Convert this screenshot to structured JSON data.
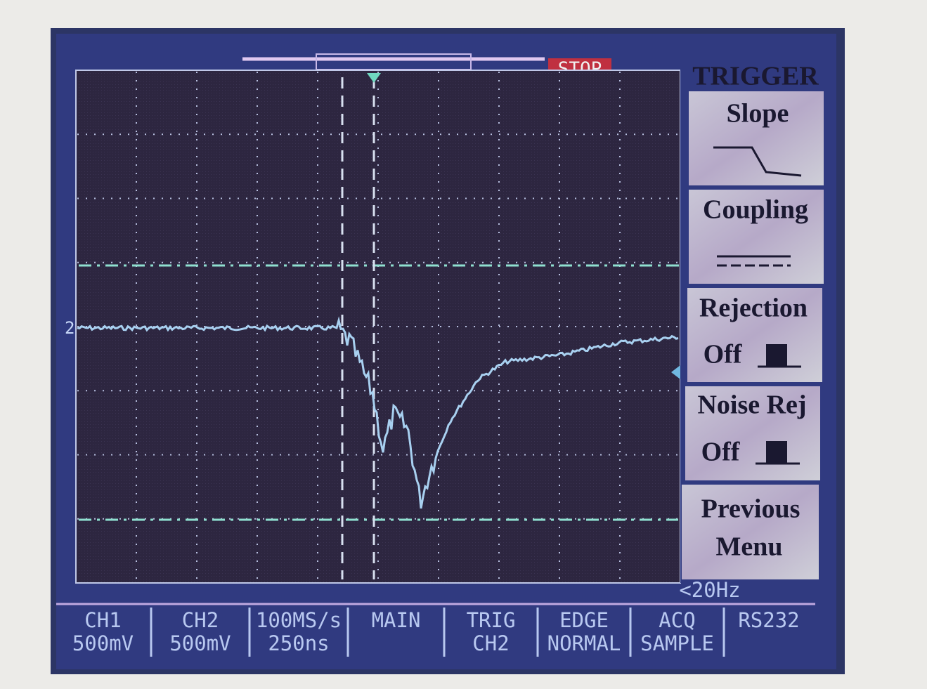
{
  "status": "STOP",
  "channel_marker": "2",
  "menu": {
    "title": "TRIGGER",
    "items": [
      {
        "label": "Slope"
      },
      {
        "label": "Coupling"
      },
      {
        "label": "Rejection",
        "value": "Off"
      },
      {
        "label": "Noise Rej",
        "value": "Off"
      },
      {
        "label": [
          "Previous",
          "Menu"
        ]
      }
    ]
  },
  "trigger_frequency": "<20Hz",
  "status_bar": [
    {
      "top": "CH1",
      "bottom": "500mV"
    },
    {
      "top": "CH2",
      "bottom": "500mV"
    },
    {
      "top": "100MS/s",
      "bottom": "250ns"
    },
    {
      "top": "MAIN"
    },
    {
      "top": "TRIG",
      "bottom": "CH2"
    },
    {
      "top": "EDGE",
      "bottom": "NORMAL"
    },
    {
      "top": "ACQ",
      "bottom": "SAMPLE"
    },
    {
      "top": "RS232"
    }
  ]
}
